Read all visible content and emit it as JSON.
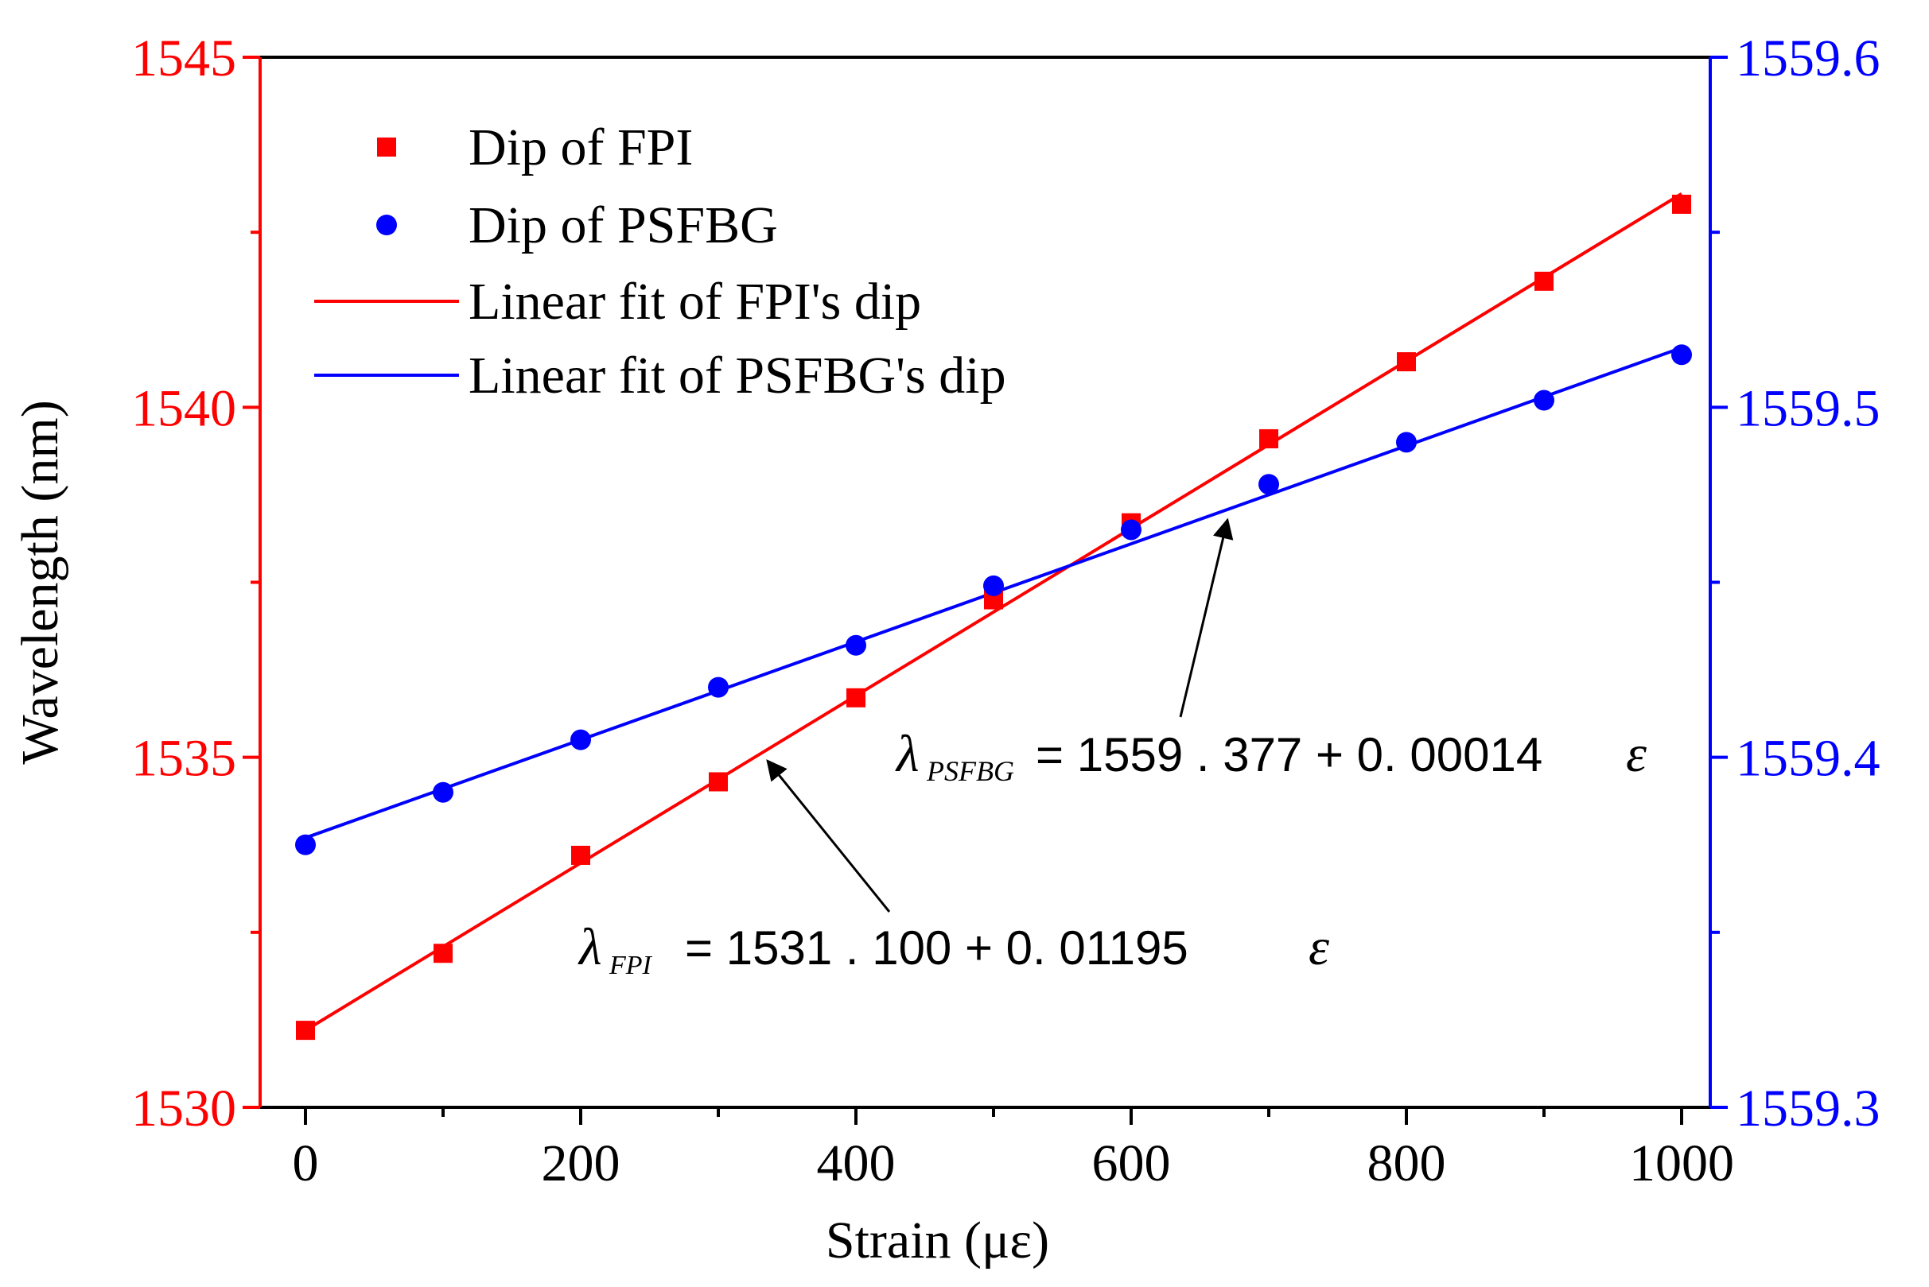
{
  "chart_data": {
    "type": "scatter",
    "title": "",
    "xlabel": "Strain (με)",
    "ylabel": "Wavelength (nm)",
    "xlim": [
      -20,
      1020
    ],
    "ylim_left": [
      1530,
      1545
    ],
    "ylim_right": [
      1559.3,
      1559.6
    ],
    "x_ticks": [
      0,
      200,
      400,
      600,
      800,
      1000
    ],
    "x_tick_labels": [
      "0",
      "200",
      "400",
      "600",
      "800",
      "1000"
    ],
    "y_left_ticks": [
      1530,
      1535,
      1540,
      1545
    ],
    "y_left_tick_labels": [
      "1530",
      "1535",
      "1540",
      "1545"
    ],
    "y_right_ticks": [
      1559.3,
      1559.4,
      1559.5,
      1559.6
    ],
    "y_right_tick_labels": [
      "1559.3",
      "1559.4",
      "1559.5",
      "1559.6"
    ],
    "grid": false,
    "legend_position": "top-left",
    "colors": {
      "fpi": "#ff0000",
      "psfbg": "#0000ff",
      "axis": "#000000"
    },
    "x": [
      0,
      100,
      200,
      300,
      400,
      500,
      600,
      700,
      800,
      900,
      1000
    ],
    "series": [
      {
        "name": "Dip of FPI",
        "axis": "left",
        "marker": "square",
        "values": [
          1531.1,
          1532.2,
          1533.6,
          1534.65,
          1535.85,
          1537.25,
          1538.35,
          1539.55,
          1540.65,
          1541.8,
          1542.9
        ]
      },
      {
        "name": "Dip of PSFBG",
        "axis": "right",
        "marker": "circle",
        "values": [
          1559.375,
          1559.39,
          1559.405,
          1559.42,
          1559.432,
          1559.449,
          1559.465,
          1559.478,
          1559.49,
          1559.502,
          1559.515
        ]
      }
    ],
    "fits": [
      {
        "name": "Linear fit of FPI's dip",
        "axis": "left",
        "intercept": 1531.1,
        "slope": 0.01195,
        "x_range": [
          0,
          1000
        ]
      },
      {
        "name": "Linear fit of PSFBG's dip",
        "axis": "right",
        "intercept": 1559.377,
        "slope": 0.00014,
        "x_range": [
          0,
          1000
        ]
      }
    ],
    "annotations": [
      {
        "symbol": "λ",
        "subscript": "PSFBG",
        "equation": "= 1559 . 377 + 0. 00014",
        "variable": "ε",
        "arrow_target": {
          "x": 670,
          "axis": "right",
          "y": 1559.471
        }
      },
      {
        "symbol": "λ",
        "subscript": "FPI",
        "equation": "= 1531 . 100 + 0. 01195",
        "variable": "ε",
        "arrow_target": {
          "x": 330,
          "axis": "left",
          "y": 1535.04
        }
      }
    ]
  }
}
